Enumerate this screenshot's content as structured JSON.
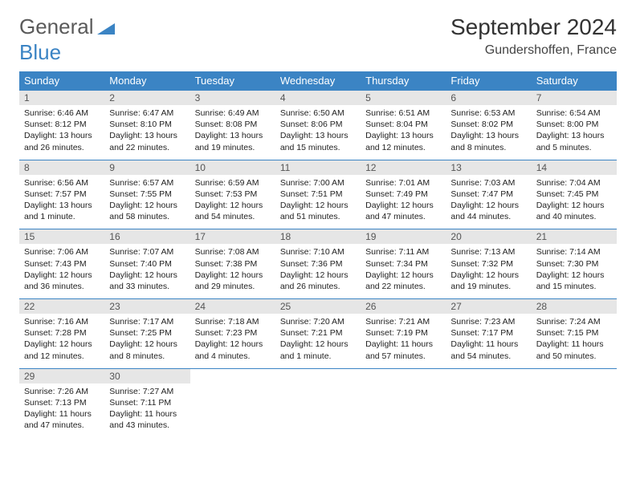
{
  "logo": {
    "word1": "General",
    "word2": "Blue",
    "word1_color": "#5a5a5a",
    "word2_color": "#3b84c4"
  },
  "title": "September 2024",
  "location": "Gundershoffen, France",
  "header_bg": "#3b84c4",
  "header_fg": "#ffffff",
  "daynum_bg": "#e6e6e6",
  "cell_border": "#3b84c4",
  "weekdays": [
    "Sunday",
    "Monday",
    "Tuesday",
    "Wednesday",
    "Thursday",
    "Friday",
    "Saturday"
  ],
  "weeks": [
    [
      {
        "n": "1",
        "sr": "Sunrise: 6:46 AM",
        "ss": "Sunset: 8:12 PM",
        "dl": "Daylight: 13 hours and 26 minutes."
      },
      {
        "n": "2",
        "sr": "Sunrise: 6:47 AM",
        "ss": "Sunset: 8:10 PM",
        "dl": "Daylight: 13 hours and 22 minutes."
      },
      {
        "n": "3",
        "sr": "Sunrise: 6:49 AM",
        "ss": "Sunset: 8:08 PM",
        "dl": "Daylight: 13 hours and 19 minutes."
      },
      {
        "n": "4",
        "sr": "Sunrise: 6:50 AM",
        "ss": "Sunset: 8:06 PM",
        "dl": "Daylight: 13 hours and 15 minutes."
      },
      {
        "n": "5",
        "sr": "Sunrise: 6:51 AM",
        "ss": "Sunset: 8:04 PM",
        "dl": "Daylight: 13 hours and 12 minutes."
      },
      {
        "n": "6",
        "sr": "Sunrise: 6:53 AM",
        "ss": "Sunset: 8:02 PM",
        "dl": "Daylight: 13 hours and 8 minutes."
      },
      {
        "n": "7",
        "sr": "Sunrise: 6:54 AM",
        "ss": "Sunset: 8:00 PM",
        "dl": "Daylight: 13 hours and 5 minutes."
      }
    ],
    [
      {
        "n": "8",
        "sr": "Sunrise: 6:56 AM",
        "ss": "Sunset: 7:57 PM",
        "dl": "Daylight: 13 hours and 1 minute."
      },
      {
        "n": "9",
        "sr": "Sunrise: 6:57 AM",
        "ss": "Sunset: 7:55 PM",
        "dl": "Daylight: 12 hours and 58 minutes."
      },
      {
        "n": "10",
        "sr": "Sunrise: 6:59 AM",
        "ss": "Sunset: 7:53 PM",
        "dl": "Daylight: 12 hours and 54 minutes."
      },
      {
        "n": "11",
        "sr": "Sunrise: 7:00 AM",
        "ss": "Sunset: 7:51 PM",
        "dl": "Daylight: 12 hours and 51 minutes."
      },
      {
        "n": "12",
        "sr": "Sunrise: 7:01 AM",
        "ss": "Sunset: 7:49 PM",
        "dl": "Daylight: 12 hours and 47 minutes."
      },
      {
        "n": "13",
        "sr": "Sunrise: 7:03 AM",
        "ss": "Sunset: 7:47 PM",
        "dl": "Daylight: 12 hours and 44 minutes."
      },
      {
        "n": "14",
        "sr": "Sunrise: 7:04 AM",
        "ss": "Sunset: 7:45 PM",
        "dl": "Daylight: 12 hours and 40 minutes."
      }
    ],
    [
      {
        "n": "15",
        "sr": "Sunrise: 7:06 AM",
        "ss": "Sunset: 7:43 PM",
        "dl": "Daylight: 12 hours and 36 minutes."
      },
      {
        "n": "16",
        "sr": "Sunrise: 7:07 AM",
        "ss": "Sunset: 7:40 PM",
        "dl": "Daylight: 12 hours and 33 minutes."
      },
      {
        "n": "17",
        "sr": "Sunrise: 7:08 AM",
        "ss": "Sunset: 7:38 PM",
        "dl": "Daylight: 12 hours and 29 minutes."
      },
      {
        "n": "18",
        "sr": "Sunrise: 7:10 AM",
        "ss": "Sunset: 7:36 PM",
        "dl": "Daylight: 12 hours and 26 minutes."
      },
      {
        "n": "19",
        "sr": "Sunrise: 7:11 AM",
        "ss": "Sunset: 7:34 PM",
        "dl": "Daylight: 12 hours and 22 minutes."
      },
      {
        "n": "20",
        "sr": "Sunrise: 7:13 AM",
        "ss": "Sunset: 7:32 PM",
        "dl": "Daylight: 12 hours and 19 minutes."
      },
      {
        "n": "21",
        "sr": "Sunrise: 7:14 AM",
        "ss": "Sunset: 7:30 PM",
        "dl": "Daylight: 12 hours and 15 minutes."
      }
    ],
    [
      {
        "n": "22",
        "sr": "Sunrise: 7:16 AM",
        "ss": "Sunset: 7:28 PM",
        "dl": "Daylight: 12 hours and 12 minutes."
      },
      {
        "n": "23",
        "sr": "Sunrise: 7:17 AM",
        "ss": "Sunset: 7:25 PM",
        "dl": "Daylight: 12 hours and 8 minutes."
      },
      {
        "n": "24",
        "sr": "Sunrise: 7:18 AM",
        "ss": "Sunset: 7:23 PM",
        "dl": "Daylight: 12 hours and 4 minutes."
      },
      {
        "n": "25",
        "sr": "Sunrise: 7:20 AM",
        "ss": "Sunset: 7:21 PM",
        "dl": "Daylight: 12 hours and 1 minute."
      },
      {
        "n": "26",
        "sr": "Sunrise: 7:21 AM",
        "ss": "Sunset: 7:19 PM",
        "dl": "Daylight: 11 hours and 57 minutes."
      },
      {
        "n": "27",
        "sr": "Sunrise: 7:23 AM",
        "ss": "Sunset: 7:17 PM",
        "dl": "Daylight: 11 hours and 54 minutes."
      },
      {
        "n": "28",
        "sr": "Sunrise: 7:24 AM",
        "ss": "Sunset: 7:15 PM",
        "dl": "Daylight: 11 hours and 50 minutes."
      }
    ],
    [
      {
        "n": "29",
        "sr": "Sunrise: 7:26 AM",
        "ss": "Sunset: 7:13 PM",
        "dl": "Daylight: 11 hours and 47 minutes."
      },
      {
        "n": "30",
        "sr": "Sunrise: 7:27 AM",
        "ss": "Sunset: 7:11 PM",
        "dl": "Daylight: 11 hours and 43 minutes."
      },
      null,
      null,
      null,
      null,
      null
    ]
  ]
}
